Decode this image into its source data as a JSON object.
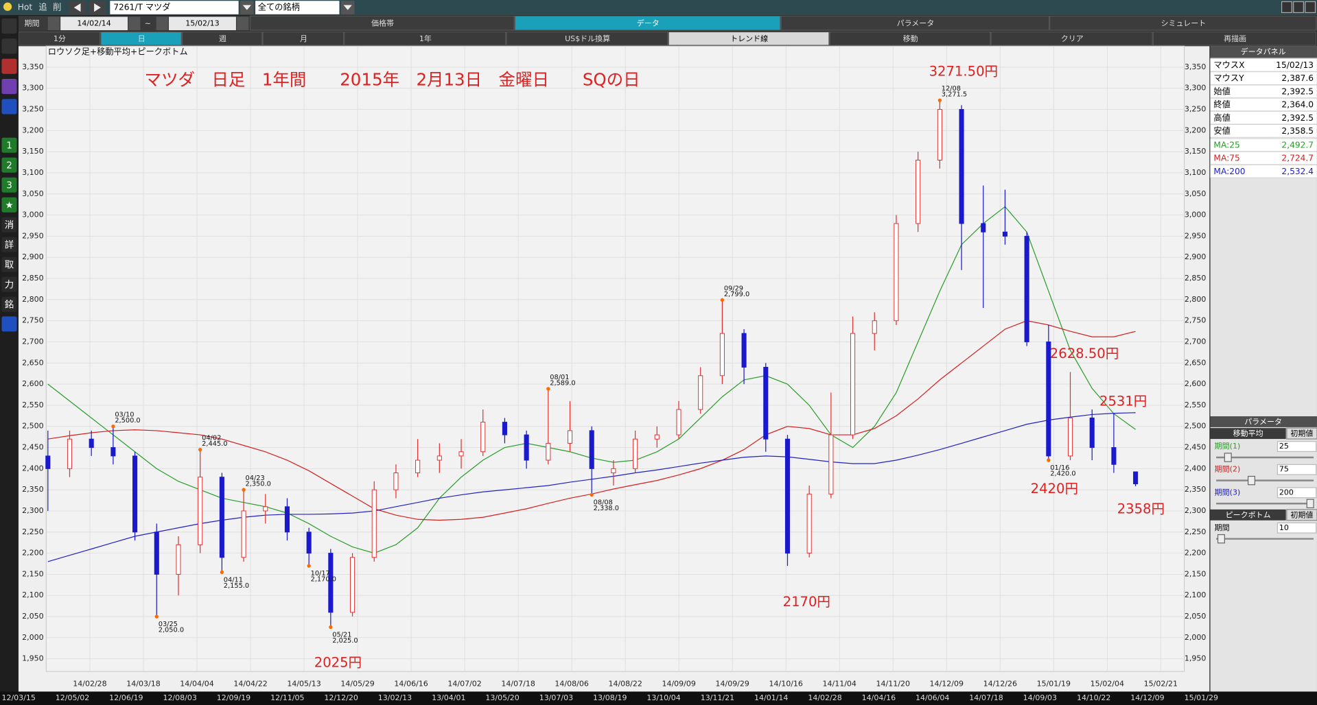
{
  "toolbar": {
    "hot": "Hot",
    "add": "追",
    "del": "削",
    "symbol": "7261/T マツダ",
    "filter": "全ての銘柄"
  },
  "period": {
    "label": "期間",
    "from": "14/02/14",
    "sep": "~",
    "to": "15/02/13"
  },
  "tabs": [
    "価格帯",
    "データ",
    "パラメータ",
    "シミュレート"
  ],
  "buttons": [
    "1分",
    "日",
    "週",
    "月",
    "1年",
    "US$ドル換算",
    "トレンド線",
    "移動",
    "クリア",
    "再描画"
  ],
  "sidebar": [
    "1",
    "2",
    "3",
    "★",
    "消",
    "詳",
    "取",
    "力",
    "銘"
  ],
  "chart_data": {
    "type": "candlestick",
    "label": "ロウソク足+移動平均+ピークボトム",
    "title": "マツダ　日足　1年間　　2015年　2月13日　金曜日　　SQの日",
    "annotations": [
      "3271.50円",
      "2628.50円",
      "2531円",
      "2420円",
      "2358円",
      "2170円",
      "2025円"
    ],
    "annotation_color": "#e02020",
    "up_color": "#e03030",
    "down_color": "#1a1acc",
    "peak_color": "#ff6a00",
    "grid": true,
    "ylim": [
      1950,
      3350
    ],
    "yticks": [
      {
        "value": 1950,
        "label": "1,950"
      },
      {
        "value": 2000,
        "label": "2,000"
      },
      {
        "value": 2050,
        "label": "2,050"
      },
      {
        "value": 2100,
        "label": "2,100"
      },
      {
        "value": 2150,
        "label": "2,150"
      },
      {
        "value": 2200,
        "label": "2,200"
      },
      {
        "value": 2250,
        "label": "2,250"
      },
      {
        "value": 2300,
        "label": "2,300"
      },
      {
        "value": 2350,
        "label": "2,350"
      },
      {
        "value": 2400,
        "label": "2,400"
      },
      {
        "value": 2450,
        "label": "2,450"
      },
      {
        "value": 2500,
        "label": "2,500"
      },
      {
        "value": 2550,
        "label": "2,550"
      },
      {
        "value": 2600,
        "label": "2,600"
      },
      {
        "value": 2650,
        "label": "2,650"
      },
      {
        "value": 2700,
        "label": "2,700"
      },
      {
        "value": 2750,
        "label": "2,750"
      },
      {
        "value": 2800,
        "label": "2,800"
      },
      {
        "value": 2850,
        "label": "2,850"
      },
      {
        "value": 2900,
        "label": "2,900"
      },
      {
        "value": 2950,
        "label": "2,950"
      },
      {
        "value": 3000,
        "label": "3,000"
      },
      {
        "value": 3050,
        "label": "3,050"
      },
      {
        "value": 3100,
        "label": "3,100"
      },
      {
        "value": 3150,
        "label": "3,150"
      },
      {
        "value": 3200,
        "label": "3,200"
      },
      {
        "value": 3250,
        "label": "3,250"
      },
      {
        "value": 3300,
        "label": "3,300"
      },
      {
        "value": 3350,
        "label": "3,350"
      }
    ],
    "x_labels": [
      "14/02/28",
      "14/03/18",
      "14/04/04",
      "14/04/22",
      "14/05/13",
      "14/05/29",
      "14/06/16",
      "14/07/02",
      "14/07/18",
      "14/08/06",
      "14/08/22",
      "14/09/09",
      "14/09/29",
      "14/10/16",
      "14/11/04",
      "14/11/20",
      "14/12/09",
      "14/12/26",
      "15/01/19",
      "15/02/04",
      "15/02/21"
    ],
    "candles": {
      "open": [
        2430,
        2400,
        2470,
        2450,
        2430,
        2250,
        2150,
        2220,
        2380,
        2190,
        2300,
        2310,
        2250,
        2200,
        2060,
        2190,
        2350,
        2390,
        2420,
        2430,
        2440,
        2510,
        2480,
        2420,
        2460,
        2490,
        2390,
        2400,
        2470,
        2480,
        2540,
        2620,
        2720,
        2640,
        2470,
        2200,
        2340,
        2480,
        2720,
        2750,
        2980,
        3130,
        3250,
        2980,
        2960,
        2950,
        2700,
        2430,
        2520,
        2450,
        2392.5
      ],
      "high": [
        2490,
        2490,
        2490,
        2500,
        2440,
        2270,
        2240,
        2445,
        2390,
        2350,
        2340,
        2330,
        2260,
        2210,
        2200,
        2370,
        2410,
        2470,
        2460,
        2470,
        2540,
        2520,
        2490,
        2589,
        2560,
        2500,
        2420,
        2490,
        2500,
        2560,
        2640,
        2799,
        2730,
        2650,
        2480,
        2360,
        2580,
        2760,
        2770,
        3000,
        3150,
        3271.5,
        3260,
        3070,
        3060,
        2960,
        2740,
        2628.5,
        2540,
        2531,
        2392.5
      ],
      "low": [
        2300,
        2380,
        2430,
        2410,
        2230,
        2050,
        2100,
        2200,
        2155,
        2180,
        2270,
        2230,
        2170,
        2025,
        2050,
        2180,
        2330,
        2380,
        2390,
        2400,
        2430,
        2460,
        2400,
        2410,
        2440,
        2338,
        2360,
        2390,
        2450,
        2470,
        2530,
        2600,
        2600,
        2440,
        2170,
        2190,
        2330,
        2470,
        2680,
        2740,
        2960,
        3110,
        2870,
        2780,
        2930,
        2690,
        2420,
        2420,
        2420,
        2390,
        2358.5
      ],
      "close": [
        2400,
        2470,
        2450,
        2430,
        2250,
        2150,
        2220,
        2380,
        2190,
        2300,
        2310,
        2250,
        2200,
        2060,
        2190,
        2350,
        2390,
        2420,
        2430,
        2440,
        2510,
        2480,
        2420,
        2460,
        2490,
        2400,
        2400,
        2470,
        2480,
        2540,
        2620,
        2720,
        2640,
        2470,
        2200,
        2340,
        2480,
        2720,
        2750,
        2980,
        3130,
        3250,
        2980,
        2960,
        2950,
        2700,
        2430,
        2520,
        2450,
        2410,
        2364
      ]
    },
    "series": [
      {
        "name": "MA:25",
        "color": "#2a9d2a",
        "values": [
          2600,
          2560,
          2520,
          2480,
          2440,
          2400,
          2370,
          2350,
          2330,
          2320,
          2310,
          2295,
          2270,
          2240,
          2215,
          2200,
          2220,
          2260,
          2330,
          2380,
          2420,
          2450,
          2460,
          2450,
          2440,
          2425,
          2415,
          2420,
          2440,
          2470,
          2520,
          2570,
          2610,
          2620,
          2600,
          2550,
          2480,
          2450,
          2500,
          2580,
          2700,
          2820,
          2930,
          2980,
          3020,
          2960,
          2820,
          2680,
          2590,
          2530,
          2492.7
        ]
      },
      {
        "name": "MA:75",
        "color": "#d42020",
        "values": [
          2470,
          2478,
          2485,
          2490,
          2492,
          2490,
          2485,
          2480,
          2470,
          2455,
          2440,
          2420,
          2395,
          2365,
          2335,
          2305,
          2290,
          2280,
          2278,
          2280,
          2285,
          2295,
          2305,
          2318,
          2330,
          2340,
          2352,
          2362,
          2372,
          2385,
          2400,
          2420,
          2445,
          2480,
          2500,
          2495,
          2480,
          2480,
          2495,
          2525,
          2565,
          2610,
          2650,
          2690,
          2730,
          2750,
          2740,
          2725,
          2712,
          2712,
          2724.7
        ]
      },
      {
        "name": "MA:200",
        "color": "#2020c8",
        "values": [
          2180,
          2195,
          2210,
          2225,
          2240,
          2250,
          2260,
          2270,
          2278,
          2285,
          2290,
          2292,
          2292,
          2293,
          2295,
          2300,
          2310,
          2320,
          2330,
          2338,
          2345,
          2350,
          2355,
          2360,
          2368,
          2375,
          2382,
          2390,
          2397,
          2405,
          2413,
          2420,
          2427,
          2430,
          2428,
          2422,
          2416,
          2412,
          2412,
          2420,
          2432,
          2445,
          2460,
          2475,
          2490,
          2505,
          2515,
          2522,
          2528,
          2531,
          2532.4
        ]
      }
    ],
    "peaks": [
      {
        "date": "03/10",
        "label": "2,500.0",
        "value": 2500,
        "kind": "peak"
      },
      {
        "date": "03/25",
        "label": "2,050.0",
        "value": 2050,
        "kind": "bottom"
      },
      {
        "date": "04/02",
        "label": "2,445.0",
        "value": 2445,
        "kind": "peak"
      },
      {
        "date": "04/11",
        "label": "2,155.0",
        "value": 2155,
        "kind": "bottom"
      },
      {
        "date": "04/23",
        "label": "2,350.0",
        "value": 2350,
        "kind": "peak"
      },
      {
        "date": "05/21",
        "label": "2,025.0",
        "value": 2025,
        "kind": "bottom"
      },
      {
        "date": "08/01",
        "label": "2,589.0",
        "value": 2589,
        "kind": "peak"
      },
      {
        "date": "08/08",
        "label": "2,338.0",
        "value": 2338,
        "kind": "bottom"
      },
      {
        "date": "09/29",
        "label": "2,799.0",
        "value": 2799,
        "kind": "peak"
      },
      {
        "date": "10/17",
        "label": "2,170.0",
        "value": 2170,
        "kind": "bottom"
      },
      {
        "date": "12/08",
        "label": "3,271.5",
        "value": 3271.5,
        "kind": "peak"
      },
      {
        "date": "01/16",
        "label": "2,420.0",
        "value": 2420,
        "kind": "bottom"
      }
    ]
  },
  "overview_dates": [
    "12/03/15",
    "12/05/02",
    "12/06/19",
    "12/08/03",
    "12/09/19",
    "12/11/05",
    "12/12/20",
    "13/02/13",
    "13/04/01",
    "13/05/20",
    "13/07/03",
    "13/08/19",
    "13/10/04",
    "13/11/21",
    "14/01/14",
    "14/02/28",
    "14/04/16",
    "14/06/04",
    "14/07/18",
    "14/09/03",
    "14/10/22",
    "14/12/09",
    "15/01/29"
  ],
  "data_panel": {
    "title": "データパネル",
    "rows": [
      [
        "マウスX",
        "15/02/13"
      ],
      [
        "マウスY",
        "2,387.6"
      ],
      [
        "始値",
        "2,392.5"
      ],
      [
        "終値",
        "2,364.0"
      ],
      [
        "高値",
        "2,392.5"
      ],
      [
        "安値",
        "2,358.5"
      ],
      [
        "MA:25",
        "2,492.7"
      ],
      [
        "MA:75",
        "2,724.7"
      ],
      [
        "MA:200",
        "2,532.4"
      ]
    ]
  },
  "param_panel": {
    "title": "パラメータ",
    "ma": "移動平均",
    "reset": "初期値",
    "periods": [
      [
        "期間(1)",
        "25"
      ],
      [
        "期間(2)",
        "75"
      ],
      [
        "期間(3)",
        "200"
      ]
    ],
    "peak": "ピークボトム",
    "peak_period": [
      "期間",
      "10"
    ]
  }
}
